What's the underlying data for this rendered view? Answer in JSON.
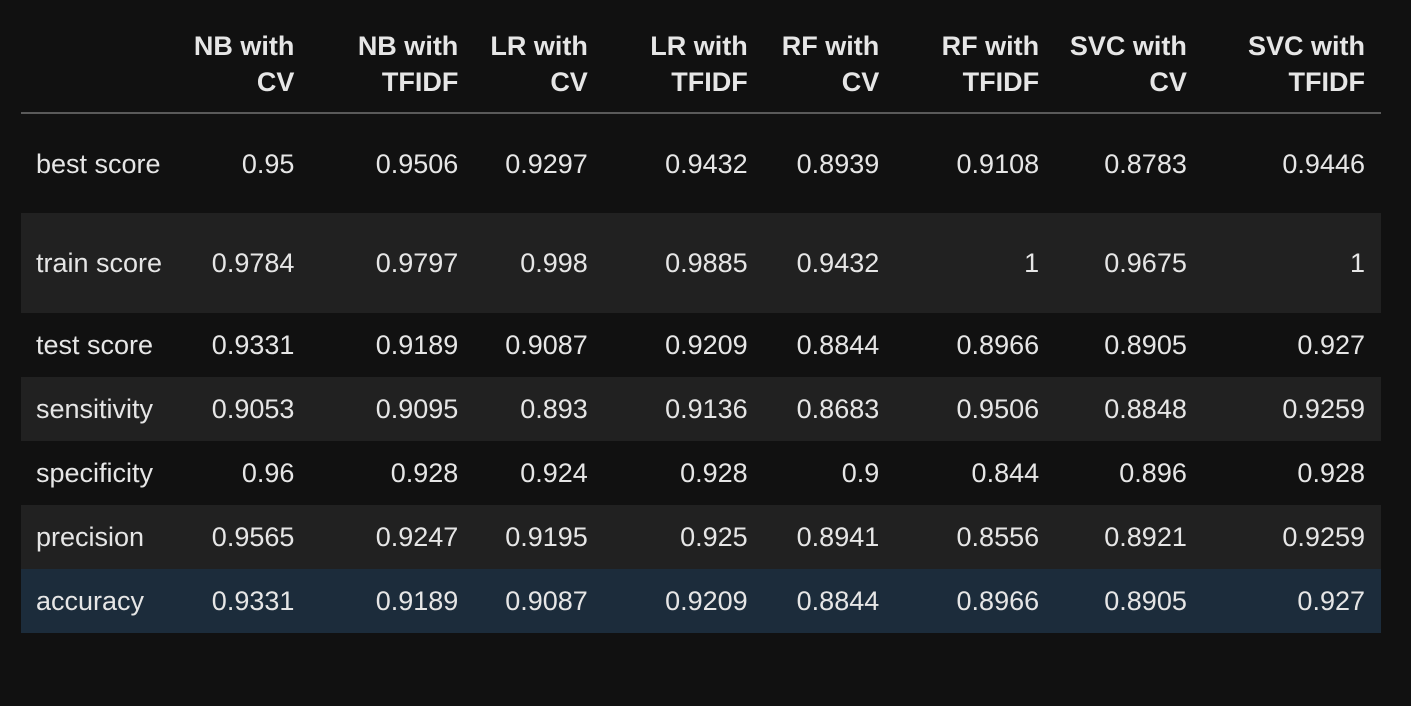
{
  "table": {
    "columns": [
      "NB with CV",
      "NB with TFIDF",
      "LR with CV",
      "LR with TFIDF",
      "RF with CV",
      "RF with TFIDF",
      "SVC with CV",
      "SVC with TFIDF"
    ],
    "rows": [
      {
        "label": "best score",
        "values": [
          "0.95",
          "0.9506",
          "0.9297",
          "0.9432",
          "0.8939",
          "0.9108",
          "0.8783",
          "0.9446"
        ]
      },
      {
        "label": "train score",
        "values": [
          "0.9784",
          "0.9797",
          "0.998",
          "0.9885",
          "0.9432",
          "1",
          "0.9675",
          "1"
        ]
      },
      {
        "label": "test score",
        "values": [
          "0.9331",
          "0.9189",
          "0.9087",
          "0.9209",
          "0.8844",
          "0.8966",
          "0.8905",
          "0.927"
        ]
      },
      {
        "label": "sensitivity",
        "values": [
          "0.9053",
          "0.9095",
          "0.893",
          "0.9136",
          "0.8683",
          "0.9506",
          "0.8848",
          "0.9259"
        ]
      },
      {
        "label": "specificity",
        "values": [
          "0.96",
          "0.928",
          "0.924",
          "0.928",
          "0.9",
          "0.844",
          "0.896",
          "0.928"
        ]
      },
      {
        "label": "precision",
        "values": [
          "0.9565",
          "0.9247",
          "0.9195",
          "0.925",
          "0.8941",
          "0.8556",
          "0.8921",
          "0.9259"
        ]
      },
      {
        "label": "accuracy",
        "values": [
          "0.9331",
          "0.9189",
          "0.9087",
          "0.9209",
          "0.8844",
          "0.8966",
          "0.8905",
          "0.927"
        ]
      }
    ]
  },
  "colors": {
    "background": "#111111",
    "row_alt": "#212121",
    "row_hover": "#1c2c3b",
    "text": "#e6e6e6",
    "header_rule": "#5a5a5a"
  }
}
